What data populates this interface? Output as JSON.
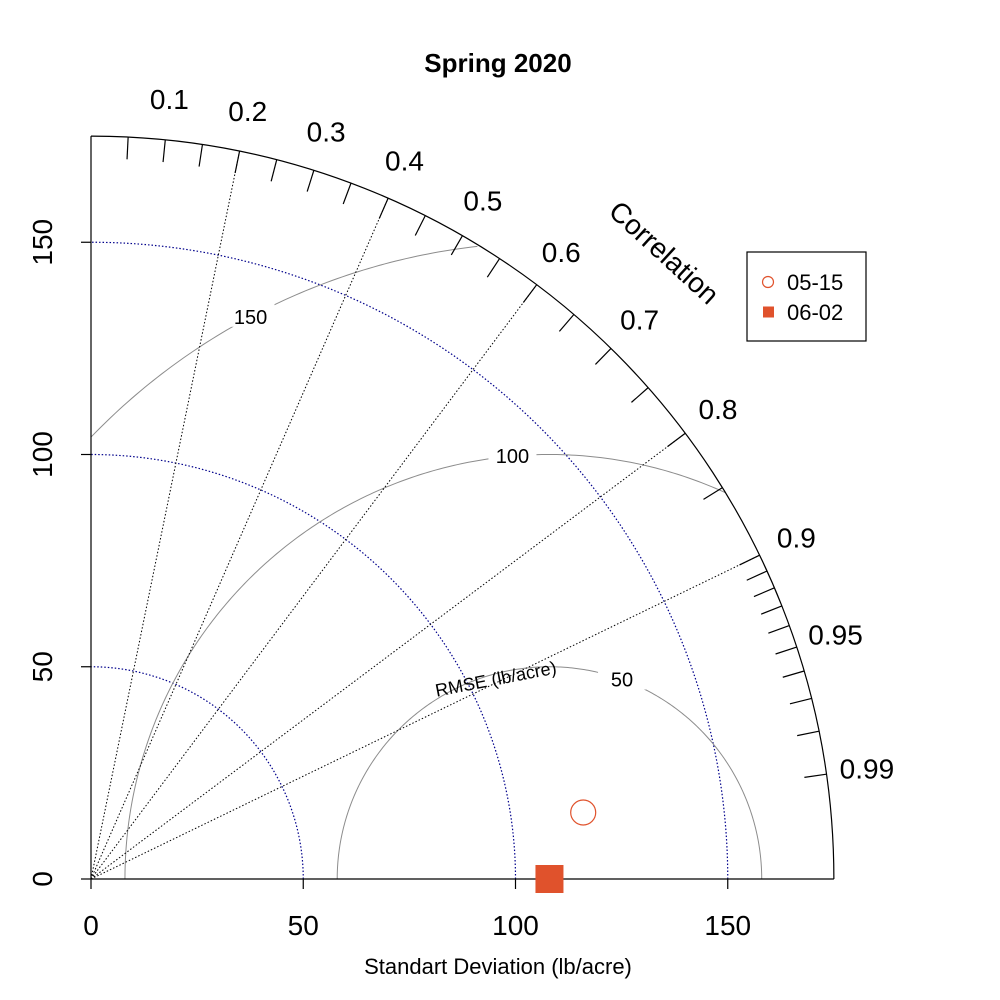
{
  "chart_data": {
    "type": "scatter",
    "title": "Spring 2020",
    "xlabel": "Standart Deviation (lb/acre)",
    "correlation_label": "Correlation",
    "rmse_label": "RMSE (lb/acre)",
    "sd_max": 175,
    "reference_sd": 108,
    "sd_ticks": [
      "0",
      "50",
      "100",
      "150"
    ],
    "sd_tick_values": [
      0,
      50,
      100,
      150
    ],
    "cor_labeled_ticks": [
      "0.1",
      "0.2",
      "0.3",
      "0.4",
      "0.5",
      "0.6",
      "0.7",
      "0.8",
      "0.9",
      "0.95",
      "0.99"
    ],
    "cor_labeled_values": [
      0.1,
      0.2,
      0.3,
      0.4,
      0.5,
      0.6,
      0.7,
      0.8,
      0.9,
      0.95,
      0.99
    ],
    "cor_minor_values": [
      0.05,
      0.15,
      0.25,
      0.35,
      0.45,
      0.55,
      0.65,
      0.75,
      0.85,
      0.91,
      0.92,
      0.93,
      0.94,
      0.96,
      0.97,
      0.98
    ],
    "cor_line_values": [
      0.2,
      0.4,
      0.6,
      0.8,
      0.9
    ],
    "rmse_values": [
      50,
      100,
      150
    ],
    "rmse_labels": [
      "50",
      "100",
      "150"
    ],
    "series": [
      {
        "name": "05-15",
        "marker": "open-circle",
        "color": "#E0522C",
        "sd": 117,
        "cor": 0.991
      },
      {
        "name": "06-02",
        "marker": "filled-square",
        "color": "#E0522C",
        "sd": 108,
        "cor": 1.0
      }
    ],
    "legend_position": "top-right",
    "colors": {
      "axis": "#000000",
      "sd_arcs": "#00008B",
      "rmse_arcs": "#8C8C8C",
      "cor_lines": "#000000"
    }
  }
}
